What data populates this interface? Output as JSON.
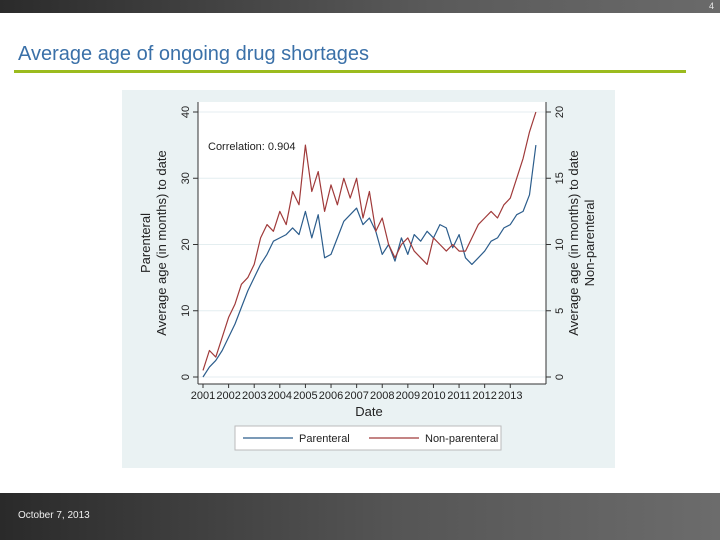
{
  "page_number": "4",
  "slide_title": "Average age of ongoing drug shortages",
  "footer_date": "October 7, 2013",
  "colors": {
    "parenteral": "#2c5d8c",
    "non_parenteral": "#a03a3a",
    "title": "#3a70a8",
    "rule": "#9bbb1e"
  },
  "chart_data": {
    "type": "line",
    "xlabel": "Date",
    "ylabel_left": [
      "Parenteral",
      "Average age (in months) to date"
    ],
    "ylabel_right": [
      "Average age (in months) to date",
      "Non-parenteral"
    ],
    "annotation": "Correlation:  0.904",
    "x_ticks": [
      "2001",
      "2002",
      "2003",
      "2004",
      "2005",
      "2006",
      "2007",
      "2008",
      "2009",
      "2010",
      "2011",
      "2012",
      "2013"
    ],
    "xlim": [
      2001,
      2014.2
    ],
    "y_left_ticks": [
      "0",
      "10",
      "20",
      "30",
      "40"
    ],
    "ylim_left": [
      0,
      40
    ],
    "y_right_ticks": [
      "0",
      "5",
      "10",
      "15",
      "20"
    ],
    "ylim_right": [
      0,
      20
    ],
    "grid": true,
    "legend_position": "bottom",
    "series": [
      {
        "name": "Parenteral",
        "axis": "left",
        "x": [
          2001.0,
          2001.25,
          2001.5,
          2001.75,
          2002.0,
          2002.25,
          2002.5,
          2002.75,
          2003.0,
          2003.25,
          2003.5,
          2003.75,
          2004.0,
          2004.25,
          2004.5,
          2004.75,
          2005.0,
          2005.25,
          2005.5,
          2005.75,
          2006.0,
          2006.25,
          2006.5,
          2006.75,
          2007.0,
          2007.25,
          2007.5,
          2007.75,
          2008.0,
          2008.25,
          2008.5,
          2008.75,
          2009.0,
          2009.25,
          2009.5,
          2009.75,
          2010.0,
          2010.25,
          2010.5,
          2010.75,
          2011.0,
          2011.25,
          2011.5,
          2011.75,
          2012.0,
          2012.25,
          2012.5,
          2012.75,
          2013.0,
          2013.25,
          2013.5,
          2013.75,
          2014.0
        ],
        "y": [
          0.0,
          1.5,
          2.5,
          4.0,
          6.0,
          8.0,
          10.5,
          13.0,
          15.0,
          17.0,
          18.5,
          20.5,
          21.0,
          21.5,
          22.5,
          21.5,
          25.0,
          21.0,
          24.5,
          18.0,
          18.5,
          21.0,
          23.5,
          24.5,
          25.5,
          23.0,
          24.0,
          22.0,
          18.5,
          20.0,
          17.5,
          21.0,
          18.5,
          21.5,
          20.5,
          22.0,
          21.0,
          23.0,
          22.5,
          19.5,
          21.5,
          18.0,
          17.0,
          18.0,
          19.0,
          20.5,
          21.0,
          22.5,
          23.0,
          24.5,
          25.0,
          27.5,
          35.0
        ]
      },
      {
        "name": "Non-parenteral",
        "axis": "right",
        "x": [
          2001.0,
          2001.25,
          2001.5,
          2001.75,
          2002.0,
          2002.25,
          2002.5,
          2002.75,
          2003.0,
          2003.25,
          2003.5,
          2003.75,
          2004.0,
          2004.25,
          2004.5,
          2004.75,
          2005.0,
          2005.25,
          2005.5,
          2005.75,
          2006.0,
          2006.25,
          2006.5,
          2006.75,
          2007.0,
          2007.25,
          2007.5,
          2007.75,
          2008.0,
          2008.25,
          2008.5,
          2008.75,
          2009.0,
          2009.25,
          2009.5,
          2009.75,
          2010.0,
          2010.25,
          2010.5,
          2010.75,
          2011.0,
          2011.25,
          2011.5,
          2011.75,
          2012.0,
          2012.25,
          2012.5,
          2012.75,
          2013.0,
          2013.25,
          2013.5,
          2013.75,
          2014.0
        ],
        "y": [
          0.5,
          2.0,
          1.5,
          3.0,
          4.5,
          5.5,
          7.0,
          7.5,
          8.5,
          10.5,
          11.5,
          11.0,
          12.5,
          11.5,
          14.0,
          13.0,
          17.5,
          14.0,
          15.5,
          12.5,
          14.5,
          13.0,
          15.0,
          13.5,
          15.0,
          12.0,
          14.0,
          11.0,
          12.0,
          10.0,
          9.0,
          10.0,
          10.5,
          9.5,
          9.0,
          8.5,
          10.5,
          10.0,
          9.5,
          10.0,
          9.5,
          9.5,
          10.5,
          11.5,
          12.0,
          12.5,
          12.0,
          13.0,
          13.5,
          15.0,
          16.5,
          18.5,
          20.0
        ]
      }
    ],
    "legend": [
      "Parenteral",
      "Non-parenteral"
    ]
  }
}
